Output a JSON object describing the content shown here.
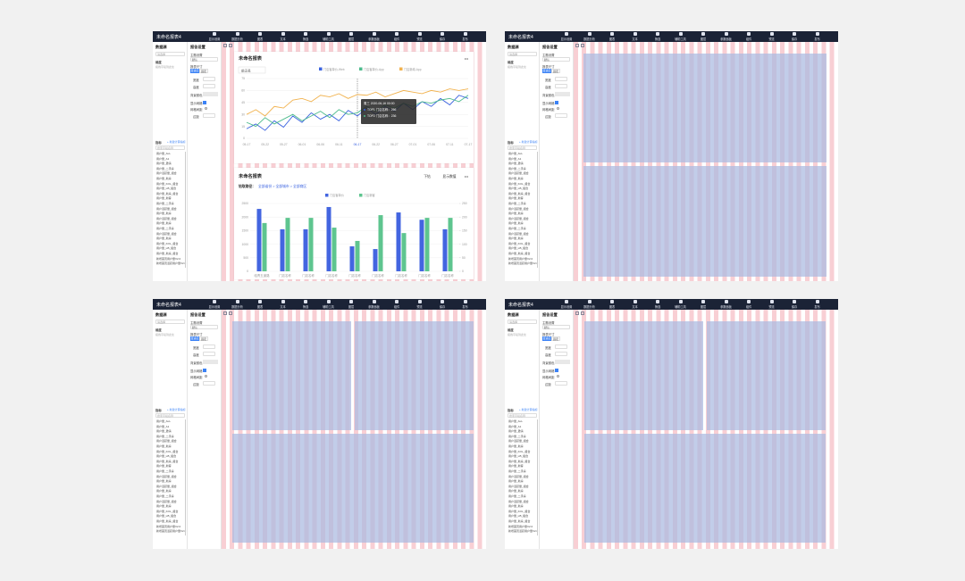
{
  "app_title": "未命名报表4",
  "toolbar": [
    "显示设置",
    "数据分析",
    "图表",
    "文本",
    "筛选",
    "辅助工具",
    "图层",
    "参数面板",
    "组件",
    "预览",
    "保存",
    "发布"
  ],
  "data_panel": {
    "title": "数据源",
    "select": "请选择",
    "dimension_label": "维度",
    "dimension_hint": "拖拽字段到此处",
    "metric_label": "指标",
    "metric_add": "+ 新建计算指标",
    "search": "搜索字段名称",
    "fields": [
      "用户量_ALL",
      "用户量_A1",
      "用户量_邀请",
      "用户量_二手房",
      "用户活跃量_组合",
      "用户量_新房",
      "用户量_KOL_组合",
      "用户量_H5_组合",
      "用户量_新房_组合",
      "用户量_新客",
      "用户量_二手房",
      "用户活跃量_组合",
      "用户量_新房",
      "用户活跃量_组合",
      "用户量_新房",
      "用户量_二手房",
      "用户活跃量_组合",
      "用户量_新房",
      "用户量_KOL_组合",
      "用户量_H5_组合",
      "用户量_新房_组合",
      "新增首页用户量V2.0",
      "新增首页活跃用户量V2.0"
    ]
  },
  "settings_panel": {
    "title": "报告设置",
    "theme_label": "主题设置",
    "theme": "默认",
    "size_label": "报表尺寸",
    "size_options": [
      "自适应",
      "固定"
    ],
    "width_label": "宽度",
    "height_label": "高度",
    "bg_label": "背景颜色",
    "grid_label": "显示网格",
    "spacing_label": "网格间距",
    "margin_label": "边距"
  },
  "screens": [
    {
      "layout": "charts"
    },
    {
      "layout": "two-rows"
    },
    {
      "layout": "two-top-one-bottom"
    },
    {
      "layout": "two-top-one-bottom"
    }
  ],
  "line_card": {
    "type": "line",
    "title": "未命名报表",
    "filter": "前五名",
    "more": "•••",
    "categories": [
      "05-17",
      null,
      "05-22",
      null,
      "05-27",
      null,
      "06-01",
      null,
      "06-06",
      null,
      "06-11",
      null,
      "06-17",
      null,
      "06-22",
      null,
      "06-27",
      null,
      "07-01",
      null,
      "07-06",
      null,
      "07-11",
      null,
      "07-17"
    ],
    "ylim": [
      0,
      75
    ],
    "yticks": [
      0,
      15,
      30,
      45,
      60,
      75
    ],
    "series": [
      {
        "name": "门店客单价-Web",
        "color": "#3b63e0",
        "values": [
          12,
          18,
          10,
          22,
          14,
          28,
          20,
          32,
          24,
          30,
          22,
          35,
          28,
          38,
          30,
          40,
          34,
          44,
          36,
          46,
          40,
          50,
          42,
          54,
          50
        ]
      },
      {
        "name": "门店客单价-App",
        "color": "#4dbb8c",
        "values": [
          20,
          15,
          26,
          18,
          24,
          30,
          22,
          28,
          34,
          26,
          36,
          30,
          32,
          40,
          34,
          42,
          38,
          44,
          40,
          46,
          44,
          48,
          50,
          46,
          54
        ]
      },
      {
        "name": "门店新增-App",
        "color": "#f1b24e",
        "values": [
          30,
          36,
          28,
          40,
          38,
          48,
          50,
          46,
          54,
          52,
          56,
          50,
          55,
          54,
          58,
          52,
          56,
          60,
          58,
          56,
          60,
          58,
          62,
          60,
          62
        ]
      }
    ],
    "tooltip": {
      "title": "周三 2020-06-16 00:00",
      "rows": [
        "TOP1 门店名称：266",
        "TOP2 门店名称：236"
      ]
    }
  },
  "bar_card": {
    "type": "bar",
    "title": "未命名报表",
    "path_label": "钻取路径：",
    "path": "全部省份 > 全部城市 > 全部商区",
    "actions": [
      "下钻",
      "显示数值"
    ],
    "more": "•••",
    "categories": [
      "临青五道路",
      "门店名称",
      "门店名称",
      "门店名称",
      "门店名称",
      "门店名称",
      "门店名称",
      "门店名称",
      "门店名称"
    ],
    "ylim": [
      0,
      2500
    ],
    "yticks": [
      0,
      500,
      1000,
      1500,
      2000,
      2500
    ],
    "y2lim": [
      0,
      250
    ],
    "y2ticks": [
      0,
      50,
      100,
      150,
      200,
      250
    ],
    "series": [
      {
        "name": "门店客单价",
        "color": "#4365e0",
        "values": [
          2300,
          1550,
          1550,
          2370,
          920,
          820,
          2170,
          1900,
          1550
        ]
      },
      {
        "name": "门店新客",
        "color": "#5ec58f",
        "values": [
          1780,
          1970,
          1970,
          1610,
          1120,
          2070,
          1410,
          1970,
          1970
        ]
      }
    ]
  }
}
